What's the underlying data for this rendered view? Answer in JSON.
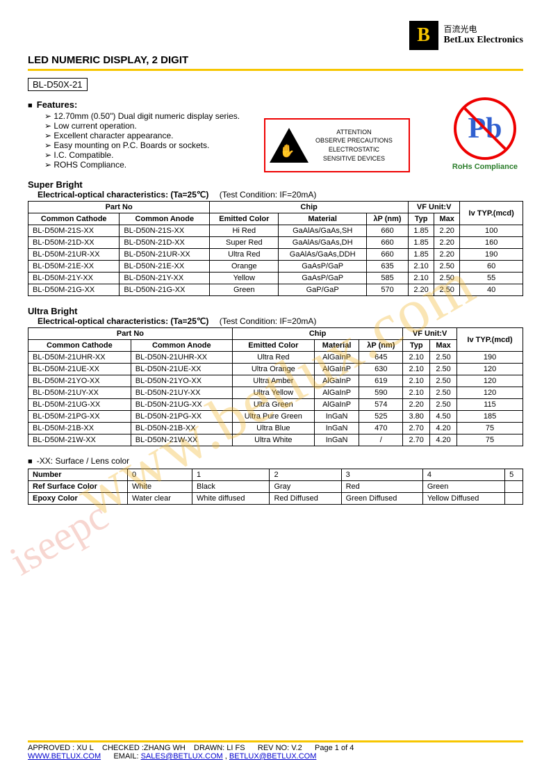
{
  "logo": {
    "cn": "百流光电",
    "en": "BetLux Electronics",
    "letter": "B"
  },
  "title": "LED NUMERIC DISPLAY, 2 DIGIT",
  "part_box": "BL-D50X-21",
  "features_head": "Features:",
  "features": [
    "12.70mm (0.50\") Dual digit numeric display series.",
    "Low current operation.",
    "Excellent character appearance.",
    "Easy mounting on P.C. Boards or sockets.",
    "I.C. Compatible.",
    "ROHS Compliance."
  ],
  "esd": {
    "head": "ATTENTION",
    "line1": "OBSERVE PRECAUTIONS",
    "line2": "ELECTROSTATIC",
    "line3": "SENSITIVE DEVICES"
  },
  "rohs": {
    "symbol": "Pb",
    "label": "RoHs Compliance"
  },
  "watermark": "www.betlux.com",
  "watermark2": "iseepc",
  "section1": {
    "name": "Super Bright",
    "char_line": "Electrical-optical characteristics: (Ta=25℃)",
    "cond": "(Test Condition: IF=20mA)",
    "headers": {
      "partno": "Part No",
      "cathode": "Common Cathode",
      "anode": "Common Anode",
      "chip": "Chip",
      "emitted": "Emitted Color",
      "material": "Material",
      "lambda": "λP (nm)",
      "vf": "VF Unit:V",
      "typ": "Typ",
      "max": "Max",
      "iv": "Iv TYP.(mcd)"
    },
    "rows": [
      {
        "cc": "BL-D50M-21S-XX",
        "ca": "BL-D50N-21S-XX",
        "col": "Hi Red",
        "mat": "GaAlAs/GaAs,SH",
        "lp": "660",
        "typ": "1.85",
        "max": "2.20",
        "iv": "100"
      },
      {
        "cc": "BL-D50M-21D-XX",
        "ca": "BL-D50N-21D-XX",
        "col": "Super Red",
        "mat": "GaAlAs/GaAs,DH",
        "lp": "660",
        "typ": "1.85",
        "max": "2.20",
        "iv": "160"
      },
      {
        "cc": "BL-D50M-21UR-XX",
        "ca": "BL-D50N-21UR-XX",
        "col": "Ultra Red",
        "mat": "GaAlAs/GaAs,DDH",
        "lp": "660",
        "typ": "1.85",
        "max": "2.20",
        "iv": "190"
      },
      {
        "cc": "BL-D50M-21E-XX",
        "ca": "BL-D50N-21E-XX",
        "col": "Orange",
        "mat": "GaAsP/GaP",
        "lp": "635",
        "typ": "2.10",
        "max": "2.50",
        "iv": "60"
      },
      {
        "cc": "BL-D50M-21Y-XX",
        "ca": "BL-D50N-21Y-XX",
        "col": "Yellow",
        "mat": "GaAsP/GaP",
        "lp": "585",
        "typ": "2.10",
        "max": "2.50",
        "iv": "55"
      },
      {
        "cc": "BL-D50M-21G-XX",
        "ca": "BL-D50N-21G-XX",
        "col": "Green",
        "mat": "GaP/GaP",
        "lp": "570",
        "typ": "2.20",
        "max": "2.50",
        "iv": "40"
      }
    ]
  },
  "section2": {
    "name": "Ultra Bright",
    "char_line": "Electrical-optical characteristics: (Ta=25℃)",
    "cond": "(Test Condition: IF=20mA)",
    "headers": {
      "partno": "Part No",
      "cathode": "Common Cathode",
      "anode": "Common Anode",
      "chip": "Chip",
      "emitted": "Emitted Color",
      "material": "Material",
      "lambda": "λP (nm)",
      "vf": "VF Unit:V",
      "typ": "Typ",
      "max": "Max",
      "iv": "Iv TYP.(mcd)"
    },
    "rows": [
      {
        "cc": "BL-D50M-21UHR-XX",
        "ca": "BL-D50N-21UHR-XX",
        "col": "Ultra Red",
        "mat": "AlGaInP",
        "lp": "645",
        "typ": "2.10",
        "max": "2.50",
        "iv": "190"
      },
      {
        "cc": "BL-D50M-21UE-XX",
        "ca": "BL-D50N-21UE-XX",
        "col": "Ultra Orange",
        "mat": "AlGaInP",
        "lp": "630",
        "typ": "2.10",
        "max": "2.50",
        "iv": "120"
      },
      {
        "cc": "BL-D50M-21YO-XX",
        "ca": "BL-D50N-21YO-XX",
        "col": "Ultra Amber",
        "mat": "AlGaInP",
        "lp": "619",
        "typ": "2.10",
        "max": "2.50",
        "iv": "120"
      },
      {
        "cc": "BL-D50M-21UY-XX",
        "ca": "BL-D50N-21UY-XX",
        "col": "Ultra Yellow",
        "mat": "AlGaInP",
        "lp": "590",
        "typ": "2.10",
        "max": "2.50",
        "iv": "120"
      },
      {
        "cc": "BL-D50M-21UG-XX",
        "ca": "BL-D50N-21UG-XX",
        "col": "Ultra Green",
        "mat": "AlGaInP",
        "lp": "574",
        "typ": "2.20",
        "max": "2.50",
        "iv": "115"
      },
      {
        "cc": "BL-D50M-21PG-XX",
        "ca": "BL-D50N-21PG-XX",
        "col": "Ultra Pure Green",
        "mat": "InGaN",
        "lp": "525",
        "typ": "3.80",
        "max": "4.50",
        "iv": "185"
      },
      {
        "cc": "BL-D50M-21B-XX",
        "ca": "BL-D50N-21B-XX",
        "col": "Ultra Blue",
        "mat": "InGaN",
        "lp": "470",
        "typ": "2.70",
        "max": "4.20",
        "iv": "75"
      },
      {
        "cc": "BL-D50M-21W-XX",
        "ca": "BL-D50N-21W-XX",
        "col": "Ultra White",
        "mat": "InGaN",
        "lp": "/",
        "typ": "2.70",
        "max": "4.20",
        "iv": "75"
      }
    ]
  },
  "lens": {
    "title": "-XX: Surface / Lens color",
    "cols": [
      "0",
      "1",
      "2",
      "3",
      "4",
      "5"
    ],
    "r1_label": "Number",
    "r2_label": "Ref Surface Color",
    "r2": [
      "White",
      "Black",
      "Gray",
      "Red",
      "Green",
      ""
    ],
    "r3_label": "Epoxy Color",
    "r3": [
      "Water clear",
      "White diffused",
      "Red Diffused",
      "Green Diffused",
      "Yellow Diffused",
      ""
    ]
  },
  "footer": {
    "line1_a": "APPROVED : XU L",
    "line1_b": "CHECKED :ZHANG WH",
    "line1_c": "DRAWN: LI FS",
    "line1_d": "REV NO: V.2",
    "line1_e": "Page 1 of 4",
    "url": "WWW.BETLUX.COM",
    "email_lead": "EMAIL: ",
    "email1": "SALES@BETLUX.COM",
    "comma": " , ",
    "email2": "BETLUX@BETLUX.COM"
  }
}
